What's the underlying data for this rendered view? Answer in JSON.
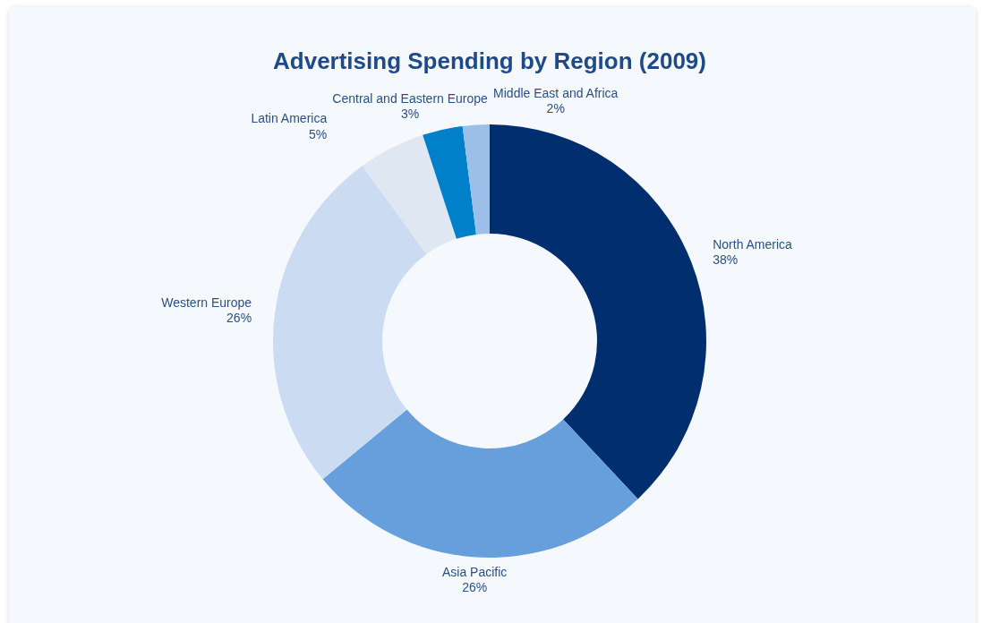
{
  "chart_data": {
    "type": "donut",
    "title": "Advertising Spending by Region (2009)",
    "categories": [
      "North America",
      "Asia Pacific",
      "Western Europe",
      "Latin America",
      "Central and Eastern Europe",
      "Middle East and Africa"
    ],
    "values": [
      38,
      26,
      26,
      5,
      3,
      2
    ],
    "colors": [
      "#002e6e",
      "#669fdb",
      "#cbdcf2",
      "#dfe7f3",
      "#0080c9",
      "#9bbfe8"
    ],
    "value_labels": [
      "38%",
      "26%",
      "26%",
      "5%",
      "3%",
      "2%"
    ]
  }
}
